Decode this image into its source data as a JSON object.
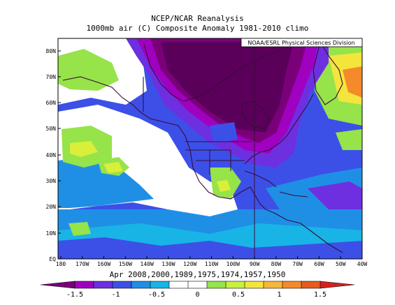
{
  "header": {
    "title": "NCEP/NCAR Reanalysis",
    "subtitle": "1000mb air (C) Composite Anomaly 1981-2010 climo"
  },
  "credit": "NOAA/ESRL Physical Sciences Division",
  "caption": "Apr 2008,2000,1989,1975,1974,1957,1950",
  "map": {
    "lat_labels": [
      "80N",
      "70N",
      "60N",
      "50N",
      "40N",
      "30N",
      "20N",
      "10N",
      "EQ"
    ],
    "lon_labels": [
      "180",
      "170W",
      "160W",
      "150W",
      "140W",
      "130W",
      "120W",
      "110W",
      "100W",
      "90W",
      "80W",
      "70W",
      "60W",
      "50W",
      "40W"
    ]
  },
  "colorbar": {
    "tick_labels": [
      "-1.5",
      "-1",
      "-0.5",
      "0",
      "0.5",
      "1",
      "1.5"
    ],
    "colors": [
      "#7a0079",
      "#a000c0",
      "#6e2fe0",
      "#3c50e8",
      "#1f8fe6",
      "#18b4e6",
      "#ffffff",
      "#ffffff",
      "#96e34a",
      "#c8f040",
      "#f3e53c",
      "#f7b63a",
      "#f58a2a",
      "#e85a20",
      "#d6201f"
    ]
  },
  "colors": {
    "frame": "#000000",
    "coast": "#3a0a3a",
    "dark_purple": "#5a005a",
    "purple": "#7a0079",
    "magenta": "#a000c0",
    "violet": "#6e2fe0",
    "indigo": "#3c50e8",
    "blue": "#1f8fe6",
    "cyan": "#18b4e6",
    "green": "#96e34a",
    "yellow": "#d9ef3a",
    "orange": "#f58a2a"
  }
}
